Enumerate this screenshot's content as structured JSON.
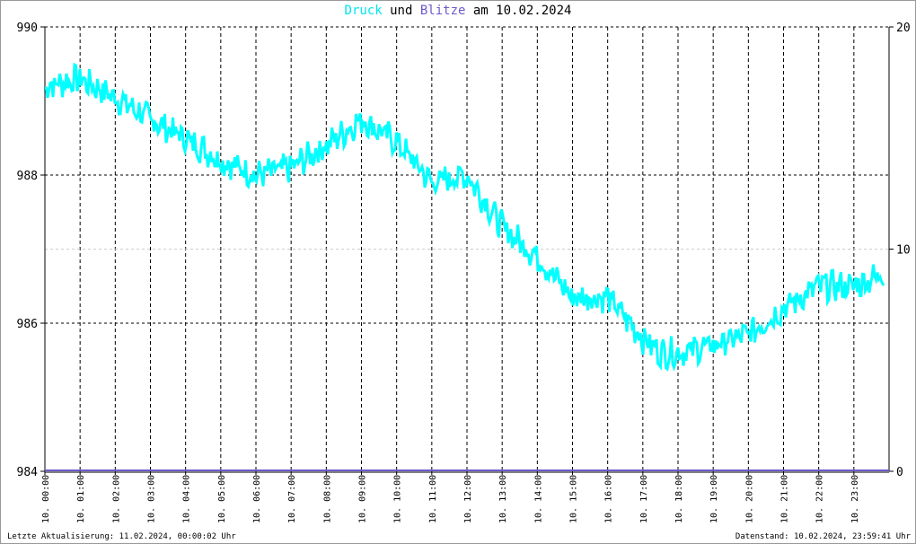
{
  "title": {
    "part1": "Druck",
    "part2": " und ",
    "part3": "Blitze",
    "part4": " am 10.02.2024"
  },
  "footer": {
    "left": "Letzte Aktualisierung: 11.02.2024, 00:00:02 Uhr",
    "right": "Datenstand: 10.02.2024, 23:59:41 Uhr"
  },
  "colors": {
    "druck": "#00ffff",
    "blitze": "#6a5acd",
    "grid": "#000000"
  },
  "chart_data": {
    "type": "line",
    "title": "Druck und Blitze am 10.02.2024",
    "x_tick_labels": [
      "10. 00:00",
      "10. 01:00",
      "10. 02:00",
      "10. 03:00",
      "10. 04:00",
      "10. 05:00",
      "10. 06:00",
      "10. 07:00",
      "10. 08:00",
      "10. 09:00",
      "10. 10:00",
      "10. 11:00",
      "10. 12:00",
      "10. 13:00",
      "10. 14:00",
      "10. 15:00",
      "10. 16:00",
      "10. 17:00",
      "10. 18:00",
      "10. 19:00",
      "10. 20:00",
      "10. 21:00",
      "10. 22:00",
      "10. 23:00"
    ],
    "y_left": {
      "ylim": [
        984,
        990
      ],
      "ticks": [
        "984",
        "986",
        "988",
        "990"
      ]
    },
    "y_right": {
      "ylim": [
        0,
        20
      ],
      "ticks": [
        "0",
        "10",
        "20"
      ]
    },
    "grid": true,
    "series": [
      {
        "name": "Druck",
        "axis": "left",
        "color": "#00ffff",
        "x_hours": [
          0,
          1,
          2,
          3,
          4,
          5,
          6,
          7,
          8,
          9,
          10,
          11,
          12,
          13,
          14,
          15,
          16,
          17,
          17.5,
          18,
          19,
          20,
          21,
          22,
          23,
          24
        ],
        "values": [
          989.2,
          989.3,
          989.05,
          988.75,
          988.5,
          988.2,
          988.0,
          988.1,
          988.4,
          988.75,
          988.45,
          987.9,
          988.0,
          987.3,
          986.9,
          986.35,
          986.35,
          985.8,
          985.6,
          985.6,
          985.7,
          985.85,
          986.2,
          986.5,
          986.5,
          986.7
        ]
      },
      {
        "name": "Blitze",
        "axis": "right",
        "color": "#6a5acd",
        "x_hours": [
          0,
          24
        ],
        "values": [
          0,
          0
        ]
      }
    ]
  }
}
